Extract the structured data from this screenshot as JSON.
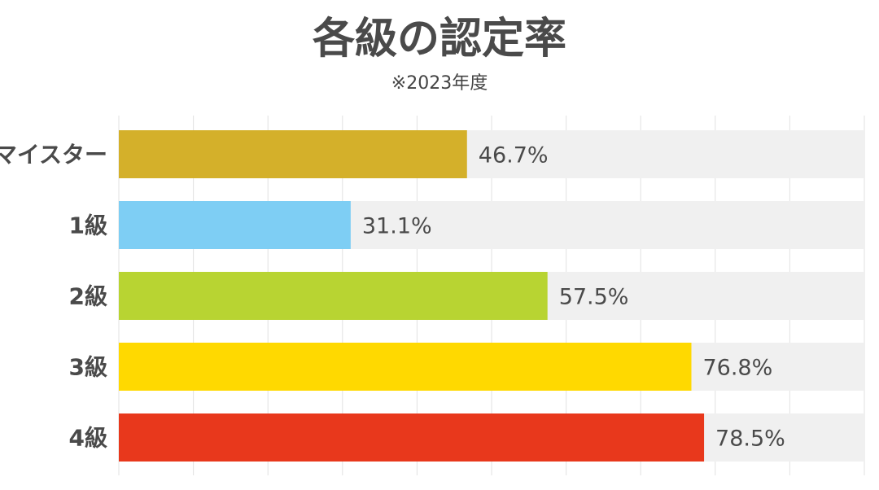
{
  "header": {
    "title": "各級の認定率",
    "subtitle": "※2023年度"
  },
  "chart_data": {
    "type": "bar",
    "orientation": "horizontal",
    "title": "各級の認定率",
    "subtitle": "※2023年度",
    "categories": [
      "マイスター",
      "1級",
      "2級",
      "3級",
      "4級"
    ],
    "values": [
      46.7,
      31.1,
      57.5,
      76.8,
      78.5
    ],
    "value_labels": [
      "46.7%",
      "31.1%",
      "57.5%",
      "76.8%",
      "78.5%"
    ],
    "unit": "%",
    "xlim": [
      0,
      100
    ],
    "grid": true,
    "legend": "none",
    "colors": [
      "#d4b02a",
      "#7ecef4",
      "#b8d432",
      "#ffd900",
      "#e8381c"
    ],
    "track_color": "#f0f0f0",
    "grid_color": "#e2e2e2"
  }
}
